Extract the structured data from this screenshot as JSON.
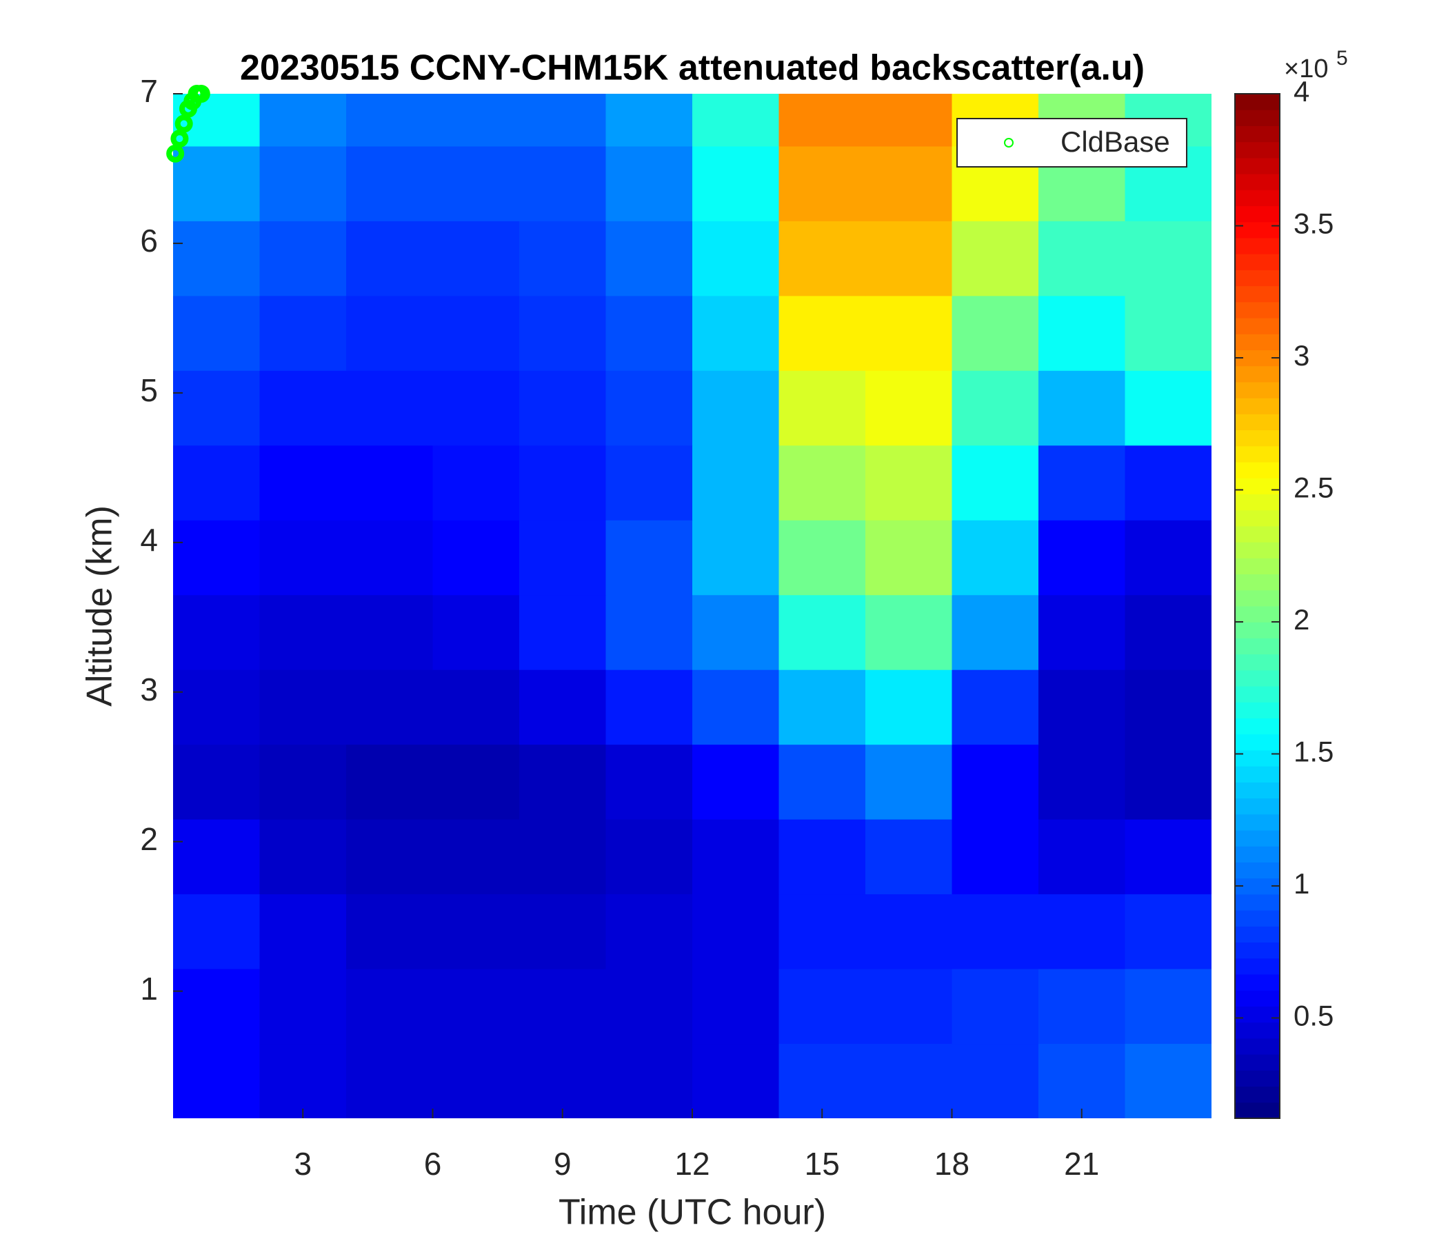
{
  "chart_data": {
    "type": "heatmap",
    "title": "20230515 CCNY-CHM15K attenuated backscatter(a.u)",
    "x_label": "Time (UTC hour)",
    "y_label": "Altitude (km)",
    "x": [
      1,
      3,
      5,
      7,
      9,
      11,
      13,
      15,
      17,
      19,
      21,
      23
    ],
    "y": [
      0.4,
      0.9,
      1.4,
      1.9,
      2.4,
      2.9,
      3.4,
      3.9,
      4.4,
      4.9,
      5.4,
      5.9,
      6.4,
      6.9
    ],
    "values": [
      [
        0.6,
        0.5,
        0.45,
        0.45,
        0.45,
        0.45,
        0.5,
        0.8,
        0.8,
        0.8,
        0.9,
        1.0
      ],
      [
        0.6,
        0.5,
        0.45,
        0.45,
        0.45,
        0.45,
        0.5,
        0.75,
        0.75,
        0.8,
        0.85,
        0.9
      ],
      [
        0.7,
        0.5,
        0.4,
        0.4,
        0.4,
        0.45,
        0.5,
        0.7,
        0.7,
        0.7,
        0.7,
        0.75
      ],
      [
        0.55,
        0.4,
        0.35,
        0.35,
        0.35,
        0.4,
        0.5,
        0.7,
        0.8,
        0.6,
        0.5,
        0.55
      ],
      [
        0.4,
        0.35,
        0.3,
        0.3,
        0.35,
        0.45,
        0.6,
        0.9,
        1.1,
        0.6,
        0.4,
        0.35
      ],
      [
        0.45,
        0.4,
        0.4,
        0.4,
        0.5,
        0.7,
        0.9,
        1.3,
        1.5,
        0.8,
        0.4,
        0.35
      ],
      [
        0.5,
        0.45,
        0.45,
        0.5,
        0.7,
        0.9,
        1.1,
        1.7,
        1.9,
        1.2,
        0.5,
        0.4
      ],
      [
        0.6,
        0.55,
        0.55,
        0.6,
        0.7,
        0.9,
        1.3,
        2.0,
        2.2,
        1.4,
        0.6,
        0.5
      ],
      [
        0.7,
        0.6,
        0.6,
        0.65,
        0.7,
        0.8,
        1.3,
        2.2,
        2.3,
        1.6,
        0.8,
        0.7
      ],
      [
        0.8,
        0.7,
        0.7,
        0.7,
        0.75,
        0.85,
        1.3,
        2.4,
        2.5,
        1.8,
        1.3,
        1.6
      ],
      [
        0.9,
        0.8,
        0.75,
        0.75,
        0.8,
        0.9,
        1.4,
        2.6,
        2.6,
        2.0,
        1.6,
        1.8
      ],
      [
        1.0,
        0.9,
        0.8,
        0.8,
        0.85,
        1.0,
        1.5,
        2.8,
        2.8,
        2.3,
        1.8,
        1.8
      ],
      [
        1.2,
        1.0,
        0.9,
        0.9,
        0.9,
        1.1,
        1.6,
        2.9,
        2.9,
        2.5,
        2.0,
        1.7
      ],
      [
        1.6,
        1.1,
        1.0,
        1.0,
        1.0,
        1.2,
        1.7,
        3.0,
        3.0,
        2.6,
        2.1,
        1.8
      ]
    ],
    "xlim": [
      0,
      24
    ],
    "ylim": [
      0.15,
      7
    ],
    "xticks": [
      3,
      6,
      9,
      12,
      15,
      18,
      21
    ],
    "yticks": [
      1,
      2,
      3,
      4,
      5,
      6,
      7
    ],
    "colormap": "jet",
    "clim": [
      0.12,
      4
    ],
    "colorbar_ticks": [
      0.5,
      1,
      1.5,
      2,
      2.5,
      3,
      3.5,
      4
    ],
    "colorbar_multiplier": "×10",
    "colorbar_exponent": "5",
    "overlay": {
      "name": "CldBase",
      "color": "#00ff00",
      "x": [
        0.05,
        0.15,
        0.25,
        0.35,
        0.45,
        0.55,
        0.65
      ],
      "y": [
        6.6,
        6.7,
        6.8,
        6.9,
        6.95,
        7.0,
        7.0
      ]
    },
    "legend_position": "upper right"
  }
}
